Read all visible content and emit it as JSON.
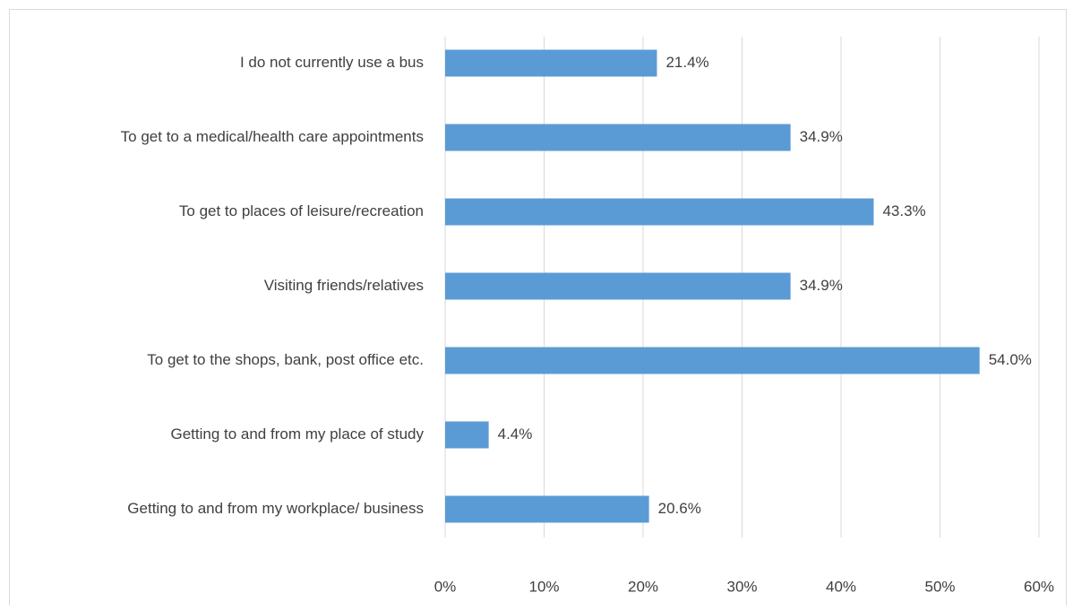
{
  "chart_data": {
    "type": "bar",
    "orientation": "horizontal",
    "categories": [
      "I do not currently use a bus",
      "To get to a medical/health care appointments",
      "To get to places of leisure/recreation",
      "Visiting friends/relatives",
      "To get to the shops, bank, post office etc.",
      "Getting to and from my place of study",
      "Getting to and from my workplace/ business"
    ],
    "values": [
      21.4,
      34.9,
      43.3,
      34.9,
      54.0,
      4.4,
      20.6
    ],
    "value_labels": [
      "21.4%",
      "34.9%",
      "43.3%",
      "34.9%",
      "54.0%",
      "4.4%",
      "20.6%"
    ],
    "color": "#5b9bd5",
    "xlim": [
      0,
      60
    ],
    "xticks": [
      {
        "value": 0,
        "label": "0%"
      },
      {
        "value": 10,
        "label": "10%"
      },
      {
        "value": 20,
        "label": "20%"
      },
      {
        "value": 30,
        "label": "30%"
      },
      {
        "value": 40,
        "label": "40%"
      },
      {
        "value": 50,
        "label": "50%"
      },
      {
        "value": 60,
        "label": "60%"
      }
    ],
    "grid": true
  }
}
